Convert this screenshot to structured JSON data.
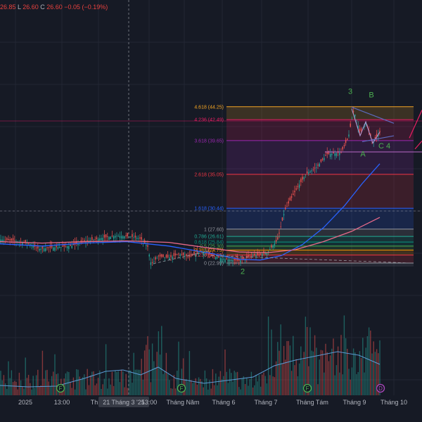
{
  "header": {
    "ohlc": [
      {
        "text": "26.85",
        "color": "#e8413e"
      },
      {
        "text": "L",
        "color": "#b2b5be"
      },
      {
        "text": "26.60",
        "color": "#e8413e"
      },
      {
        "text": "C",
        "color": "#b2b5be"
      },
      {
        "text": "26.60",
        "color": "#e8413e"
      },
      {
        "text": "−0.05 (−0.19%)",
        "color": "#e8413e"
      }
    ]
  },
  "chart_data": {
    "type": "candlestick",
    "title": "",
    "price_range": [
      18,
      52
    ],
    "x_ticks": [
      "2025",
      "13:00",
      "Th",
      "21 Tháng 3 '25",
      "13:00",
      "Tháng Năm",
      "Tháng 6",
      "Tháng 7",
      "Tháng Tám",
      "Tháng 9",
      "Tháng 10"
    ],
    "highlighted_tick": "21 Tháng 3 '25",
    "fib_levels": [
      {
        "ratio": "4.618",
        "value": 44.25,
        "label": "4.618 (44.25)",
        "color": "#f5a623"
      },
      {
        "ratio": "4.236",
        "value": 42.49,
        "label": "4.236 (42.49)",
        "color": "#e91e63"
      },
      {
        "ratio": "3.618",
        "value": 39.65,
        "label": "3.618 (39.65)",
        "color": "#9c27b0"
      },
      {
        "ratio": "2.618",
        "value": 35.05,
        "label": "2.618 (35.05)",
        "color": "#f23645"
      },
      {
        "ratio": "1.618",
        "value": 30.44,
        "label": "1.618 (30.44)",
        "color": "#2962ff"
      },
      {
        "ratio": "1",
        "value": 27.6,
        "label": "1 (27.60)",
        "color": "#9598a1"
      },
      {
        "ratio": "0.786",
        "value": 26.61,
        "label": "0.786 (26.61)",
        "color": "#22ab94"
      },
      {
        "ratio": "0.618",
        "value": 25.84,
        "label": "0.618 (25.84)",
        "color": "#089981"
      },
      {
        "ratio": "0.5",
        "value": 25.3,
        "label": "0.5 (25.30)",
        "color": "#4caf50"
      },
      {
        "ratio": "0.382",
        "value": 24.75,
        "label": "0.382 (24.75)",
        "color": "#ff9800"
      },
      {
        "ratio": "0.236",
        "value": 24.08,
        "label": "0.236 (24.08)",
        "color": "#f23645"
      },
      {
        "ratio": "0",
        "value": 22.99,
        "label": "0 (22.99)",
        "color": "#9598a1"
      }
    ],
    "wave_labels": [
      "2",
      "3",
      "A",
      "B",
      "C",
      "4"
    ],
    "event_markers": [
      "F",
      "F",
      "F",
      "D"
    ],
    "series": [
      {
        "name": "price",
        "color": "#26a69a"
      },
      {
        "name": "moving average",
        "color": "#2962ff"
      },
      {
        "name": "moving average 2",
        "color": "#e86a8a"
      },
      {
        "name": "volume",
        "color": "#26a69a"
      }
    ],
    "grid": true
  }
}
